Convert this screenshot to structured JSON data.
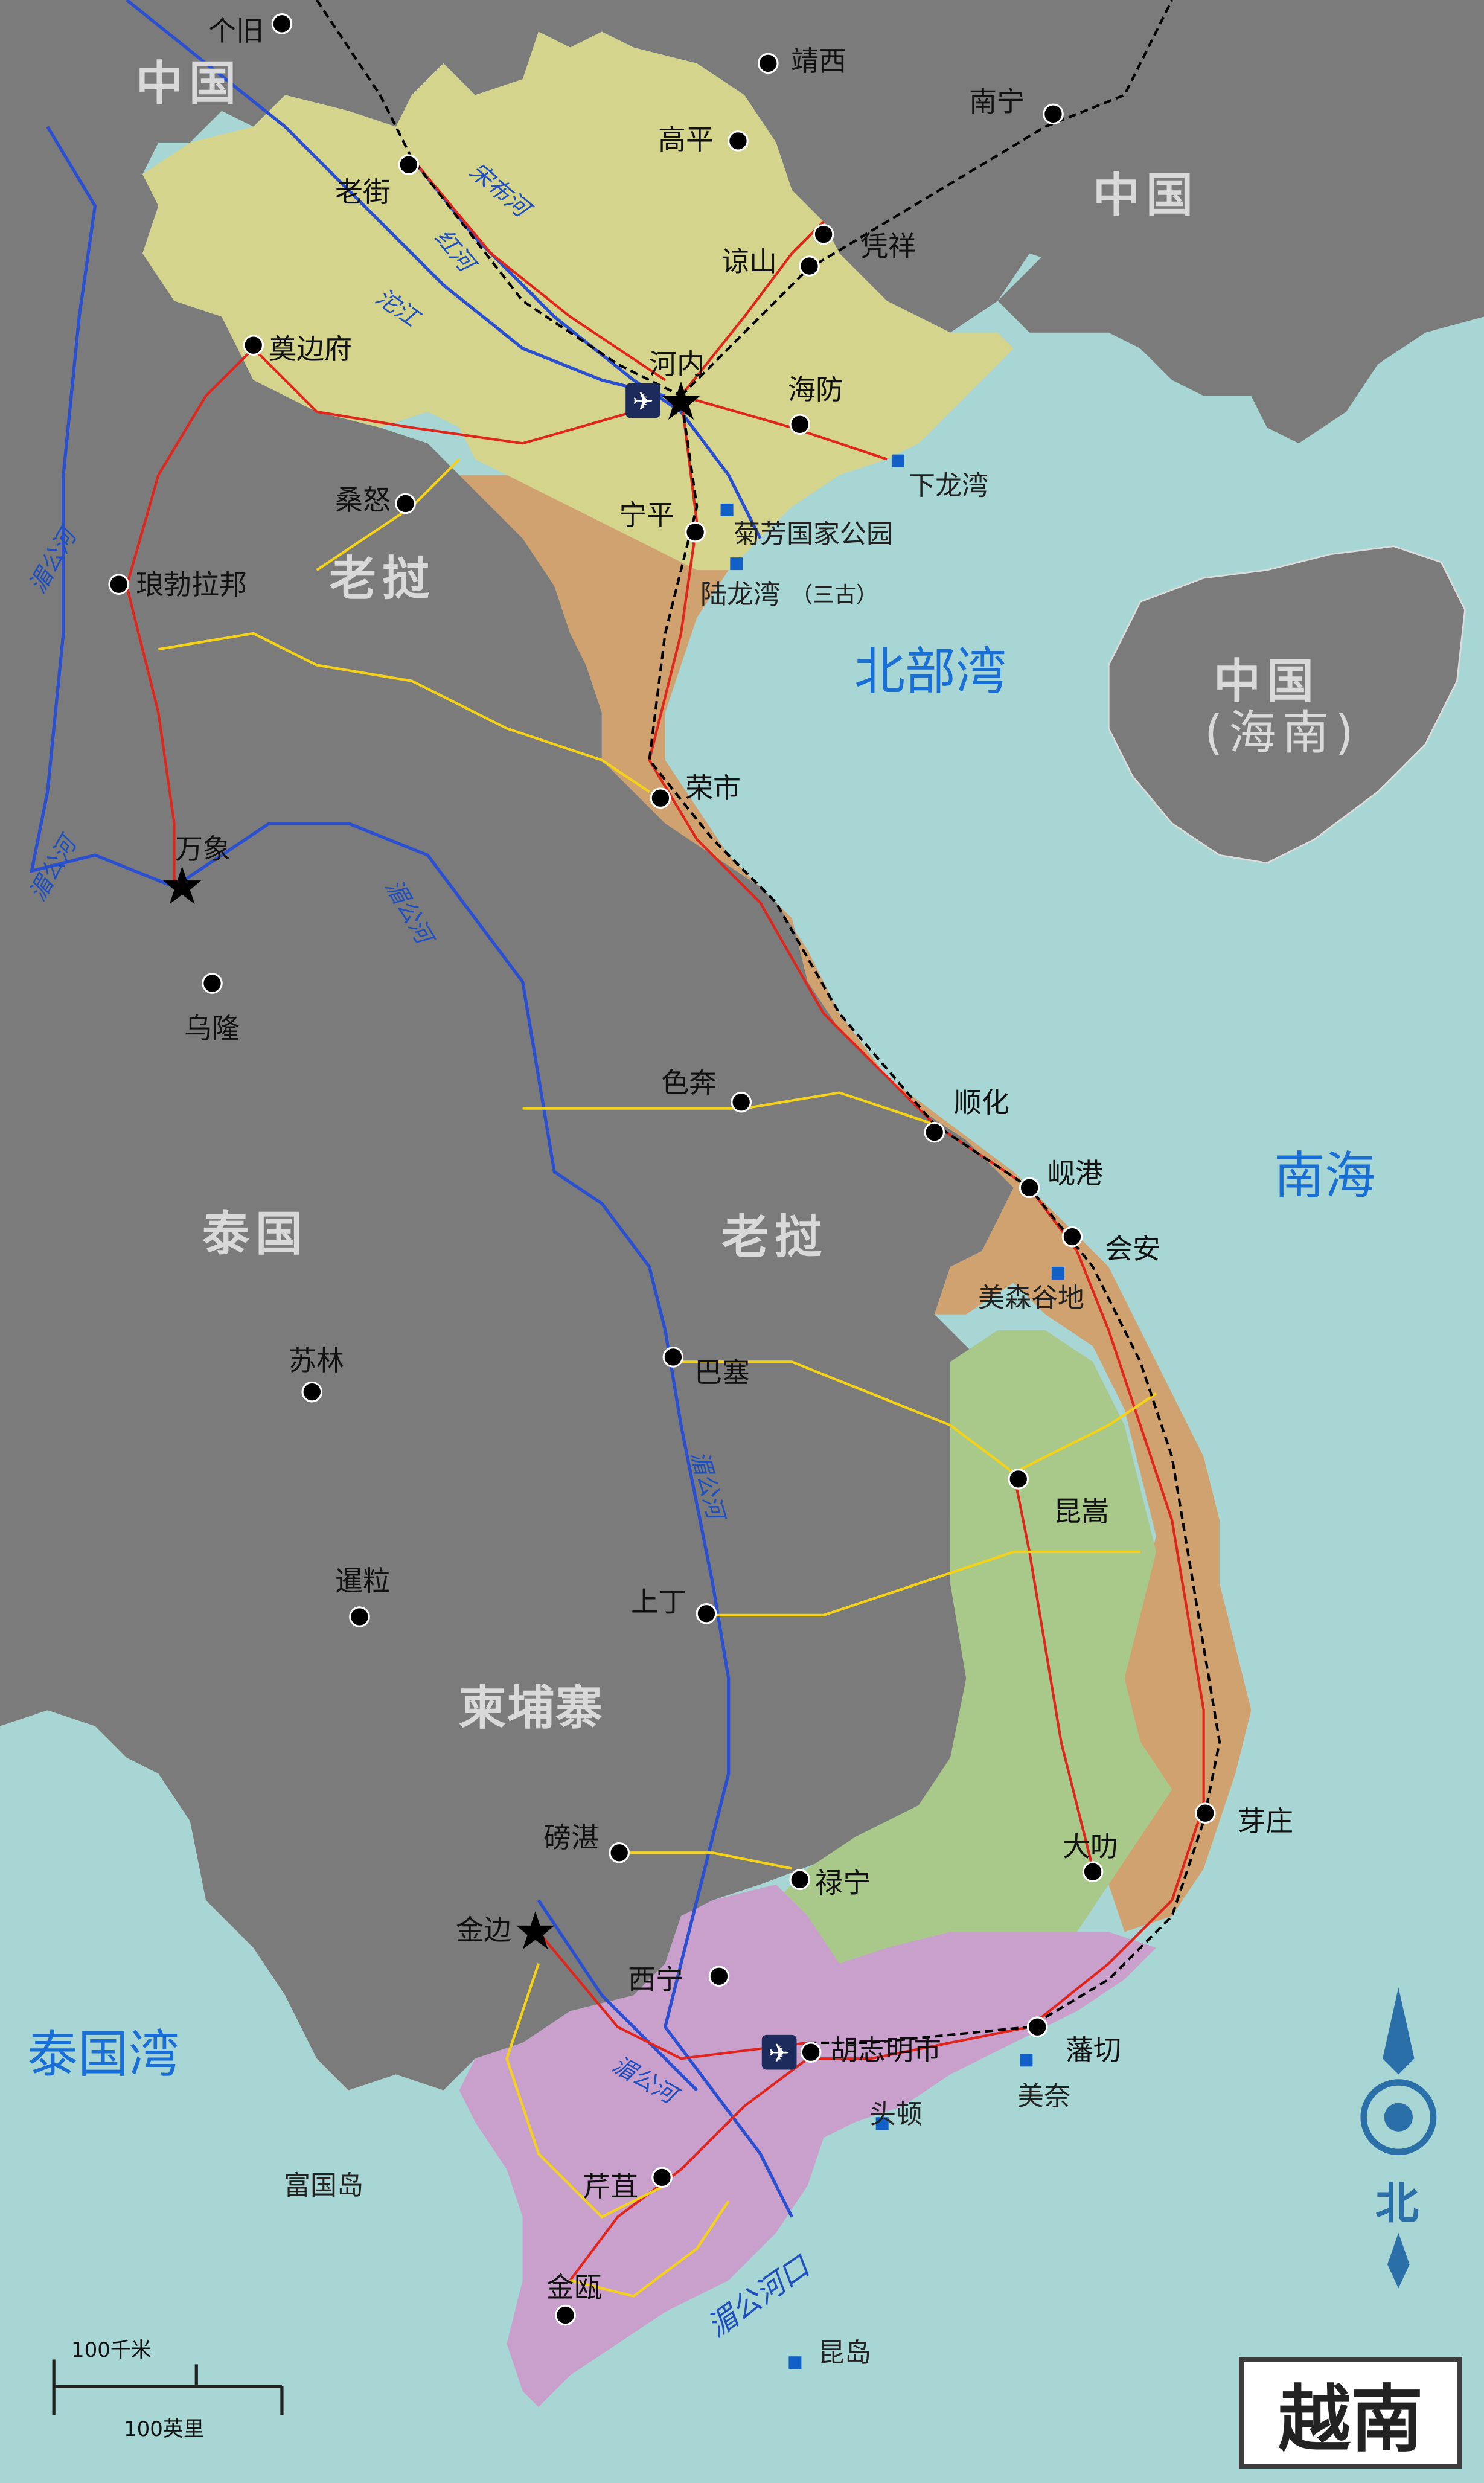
{
  "title": "越南",
  "colors": {
    "sea": "#a8d6d4",
    "foreign_land": "#7b7b7b",
    "north_region": "#d4d48c",
    "north_central_coast": "#cfa26f",
    "central_highlands": "#a9c98b",
    "south_region": "#c9a0cc",
    "road": "#e0261c",
    "secondary_road": "#f5d21a",
    "railway": "#000000",
    "river": "#2a4fd0"
  },
  "countries": {
    "china_nw": "中国",
    "china_ne": "中国",
    "hainan": "中国",
    "hainan_sub": "(海南)",
    "laos_north": "老挝",
    "laos_south": "老挝",
    "thailand": "泰国",
    "cambodia": "柬埔寨"
  },
  "seas": {
    "gulf_tonkin": "北部湾",
    "south_sea": "南海",
    "gulf_thailand": "泰国湾"
  },
  "rivers": {
    "song_da": "沱江",
    "red_river": "红河",
    "song_cau": "宋布河",
    "mekong_1": "湄公河",
    "mekong_2": "湄公河",
    "mekong_3": "湄公河",
    "mekong_4": "湄公河",
    "mekong_5": "湄公河",
    "mekong_mouth": "湄公河口"
  },
  "cities": {
    "gejiu": "个旧",
    "jingxi": "靖西",
    "nanning": "南宁",
    "laocai": "老街",
    "caobang": "高平",
    "langson": "谅山",
    "pingxiang": "凭祥",
    "dienbienphu": "奠边府",
    "hanoi": "河内",
    "haiphong": "海防",
    "samneua": "桑怒",
    "ninhbinh": "宁平",
    "luangprabang": "琅勃拉邦",
    "vinh": "荣市",
    "vientiane": "万象",
    "udon": "乌隆",
    "savannakhet": "色奔",
    "hue": "顺化",
    "danang": "岘港",
    "hoian": "会安",
    "sakon": "苏林",
    "pakse": "巴塞",
    "kontum": "昆嵩",
    "siemreap": "暹粒",
    "stungtreng": "上丁",
    "kampongcham": "磅湛",
    "phnompenh": "金边",
    "locninh": "禄宁",
    "buonmathuot": "大叻",
    "nhatrang": "芽庄",
    "tayninh": "西宁",
    "hcmc": "胡志明市",
    "phanthiet": "藩切",
    "cantho": "芹苴",
    "camau": "金瓯"
  },
  "pois": {
    "halong": "下龙湾",
    "cucphuong": "菊芳国家公园",
    "baitulong": "陆龙湾",
    "baitulong_sub": "（三古）",
    "myson": "美森谷地",
    "muine": "美奈",
    "vungtau": "头顿",
    "phuquoc": "富国岛",
    "condao": "昆岛"
  },
  "scale": {
    "km": "100千米",
    "mi": "100英里"
  },
  "north": "北"
}
